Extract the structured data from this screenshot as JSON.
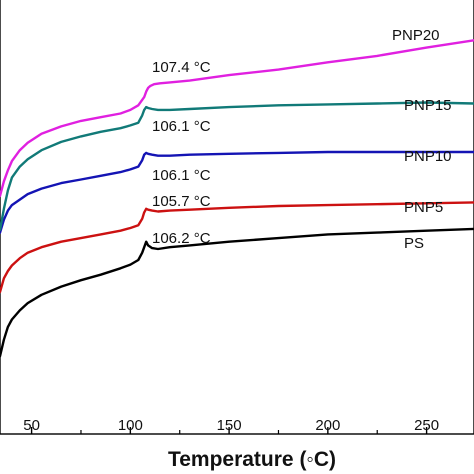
{
  "chart_data": {
    "type": "line",
    "title": "",
    "xlabel": "Temperature (◦C)",
    "ylabel": "",
    "xlim": [
      34,
      274
    ],
    "ylim": [
      0,
      474
    ],
    "x_ticks": [
      50,
      100,
      150,
      200,
      250
    ],
    "x_tick_labels": [
      "50",
      "100",
      "150",
      "200",
      "250"
    ],
    "grid": false,
    "legend": "none",
    "y_note": "vertical offsets, no y scale printed",
    "series": [
      {
        "name": "PS",
        "color": "#000000",
        "x": [
          34,
          36,
          38,
          40,
          44,
          48,
          55,
          65,
          75,
          85,
          95,
          100,
          104,
          106,
          107,
          108,
          109,
          111,
          114,
          120,
          130,
          150,
          175,
          200,
          225,
          250,
          274
        ],
        "y": [
          85,
          103,
          117,
          125,
          135,
          143,
          152,
          161,
          168,
          174,
          181,
          185,
          190,
          198,
          204,
          210,
          206,
          203,
          202,
          204,
          206,
          210,
          214,
          218,
          220,
          222,
          224
        ],
        "label": "PS",
        "annotation": "106.2 °C"
      },
      {
        "name": "PNP5",
        "color": "#cc1111",
        "x": [
          34,
          36,
          38,
          40,
          44,
          48,
          55,
          65,
          75,
          85,
          95,
          100,
          104,
          106,
          107,
          108,
          109,
          111,
          114,
          120,
          130,
          150,
          175,
          200,
          225,
          250,
          274
        ],
        "y": [
          155,
          170,
          178,
          184,
          192,
          198,
          204,
          210,
          214,
          218,
          222,
          225,
          228,
          235,
          242,
          246,
          245,
          244,
          243,
          244,
          245,
          247,
          249,
          250,
          251,
          252,
          253
        ],
        "label": "PNP5",
        "annotation": "105.7 °C"
      },
      {
        "name": "PNP10",
        "color": "#1414b4",
        "x": [
          34,
          36,
          38,
          40,
          44,
          48,
          55,
          65,
          75,
          85,
          95,
          100,
          104,
          106,
          107,
          108,
          109,
          111,
          114,
          120,
          130,
          150,
          175,
          200,
          225,
          250,
          274
        ],
        "y": [
          220,
          234,
          244,
          250,
          256,
          262,
          268,
          274,
          278,
          282,
          286,
          289,
          292,
          299,
          305,
          307,
          306,
          305,
          304,
          304,
          305,
          306,
          307,
          308,
          308,
          308,
          308
        ],
        "label": "PNP10",
        "annotation": "106.1 °C"
      },
      {
        "name": "PNP15",
        "color": "#117a78",
        "x": [
          34,
          36,
          38,
          40,
          44,
          48,
          55,
          65,
          75,
          85,
          95,
          100,
          104,
          106,
          107,
          108,
          109,
          111,
          114,
          120,
          130,
          150,
          175,
          200,
          225,
          250,
          274
        ],
        "y": [
          223,
          246,
          266,
          280,
          292,
          300,
          310,
          319,
          325,
          330,
          334,
          337,
          340,
          348,
          354,
          357,
          356,
          355,
          354,
          354,
          355,
          357,
          359,
          360,
          361,
          362,
          361
        ],
        "label": "PNP15",
        "annotation": "106.1 °C"
      },
      {
        "name": "PNP20",
        "color": "#e020e0",
        "x": [
          34,
          36,
          38,
          40,
          44,
          48,
          55,
          65,
          75,
          85,
          95,
          100,
          104,
          107,
          108,
          109,
          110,
          112,
          115,
          120,
          130,
          150,
          175,
          200,
          225,
          250,
          274
        ],
        "y": [
          260,
          276,
          288,
          298,
          310,
          318,
          328,
          336,
          342,
          346,
          350,
          354,
          359,
          368,
          374,
          378,
          380,
          382,
          383,
          384,
          386,
          392,
          398,
          406,
          413,
          422,
          430
        ],
        "label": "PNP20",
        "annotation": "107.4 °C"
      }
    ]
  }
}
